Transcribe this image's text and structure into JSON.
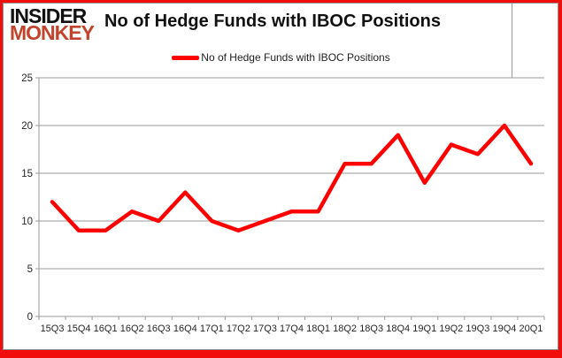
{
  "logo": {
    "line1": "INSIDER",
    "line2": "MONKEY"
  },
  "title": "No of Hedge Funds with IBOC Positions",
  "legend": {
    "label": "No of Hedge Funds with IBOC Positions"
  },
  "colors": {
    "line": "#ff0000",
    "logo_red": "#c2442d",
    "frame_red": "#f20d0d",
    "grid": "#9a9a9a",
    "axis": "#9a9a9a",
    "label_text": "#262626"
  },
  "chart_data": {
    "type": "line",
    "title": "No of Hedge Funds with IBOC Positions",
    "categories": [
      "15Q3",
      "15Q4",
      "16Q1",
      "16Q2",
      "16Q3",
      "16Q4",
      "17Q1",
      "17Q2",
      "17Q3",
      "17Q4",
      "18Q1",
      "18Q2",
      "18Q3",
      "18Q4",
      "19Q1",
      "19Q2",
      "19Q3",
      "19Q4",
      "20Q1"
    ],
    "series": [
      {
        "name": "No of Hedge Funds with IBOC Positions",
        "values": [
          12,
          9,
          9,
          11,
          10,
          13,
          10,
          9,
          10,
          11,
          11,
          16,
          16,
          19,
          14,
          18,
          17,
          20,
          16
        ]
      }
    ],
    "xlabel": "",
    "ylabel": "",
    "ylim": [
      0,
      25
    ],
    "yticks": [
      0,
      5,
      10,
      15,
      20,
      25
    ],
    "grid": true,
    "legend_position": "top-center"
  }
}
